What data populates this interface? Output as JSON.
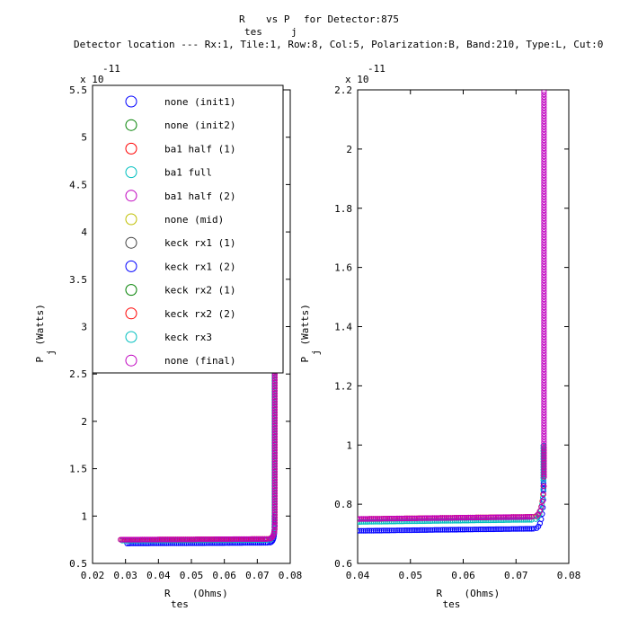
{
  "figure": {
    "title_line1_parts": [
      "R",
      "tes",
      "vs P",
      "j",
      "for Detector:875"
    ],
    "title_line2": "Detector location --- Rx:1, Tile:1, Row:8, Col:5, Polarization:B, Band:210, Type:L, Cut:0"
  },
  "chart_data": [
    {
      "type": "scatter",
      "name": "left-panel",
      "xlim": [
        0.02,
        0.08
      ],
      "ylim": [
        5e-12,
        5.5e-11
      ],
      "x_ticks": [
        "0.02",
        "0.03",
        "0.04",
        "0.05",
        "0.06",
        "0.07",
        "0.08"
      ],
      "y_ticks": [
        "0.5",
        "1",
        "1.5",
        "2",
        "2.5",
        "3",
        "3.5",
        "4",
        "4.5",
        "5",
        "5.5"
      ],
      "y_tick_values": [
        0.5,
        1,
        1.5,
        2,
        2.5,
        3,
        3.5,
        4,
        4.5,
        5,
        5.5
      ],
      "exponent_prefix": "x 10",
      "exponent": "-11",
      "xlabel_main": "R",
      "xlabel_sub": "tes",
      "xlabel_unit": "(Ohms)",
      "ylabel_main": "P",
      "ylabel_sub": "j",
      "ylabel_unit": "(Watts)",
      "legend_placement": "top-left",
      "legend": [
        {
          "label": "none (init1)",
          "color": "#0000ff"
        },
        {
          "label": "none (init2)",
          "color": "#008000"
        },
        {
          "label": "ba1 half (1)",
          "color": "#ff0000"
        },
        {
          "label": "ba1 full",
          "color": "#00bfbf"
        },
        {
          "label": "ba1 half (2)",
          "color": "#bf00bf"
        },
        {
          "label": "none (mid)",
          "color": "#bfbf00"
        },
        {
          "label": "keck rx1 (1)",
          "color": "#404040"
        },
        {
          "label": "keck rx1 (2)",
          "color": "#0000ff"
        },
        {
          "label": "keck rx2 (1)",
          "color": "#008000"
        },
        {
          "label": "keck rx2 (2)",
          "color": "#ff0000"
        },
        {
          "label": "keck rx3",
          "color": "#00bfbf"
        },
        {
          "label": "none (final)",
          "color": "#bf00bf"
        }
      ],
      "series": [
        {
          "color": "#bfbf00",
          "flat_y": 7.5e-12,
          "x_start": 0.0285,
          "x_knee": 0.073,
          "x_end": 0.0753,
          "y_top": 2.7e-11
        },
        {
          "color": "#0000ff",
          "flat_y": 7.1e-12,
          "x_start": 0.0305,
          "x_knee": 0.0735,
          "x_end": 0.0752,
          "y_top": 1e-11
        },
        {
          "color": "#00bfbf",
          "flat_y": 7.4e-12,
          "x_start": 0.029,
          "x_knee": 0.0732,
          "x_end": 0.0752,
          "y_top": 2.6e-11
        },
        {
          "color": "#ff0000",
          "flat_y": 7.5e-12,
          "x_start": 0.029,
          "x_knee": 0.0733,
          "x_end": 0.0753,
          "y_top": 2.6e-11
        },
        {
          "color": "#bf00bf",
          "flat_y": 7.5e-12,
          "x_start": 0.0285,
          "x_knee": 0.0732,
          "x_end": 0.0753,
          "y_top": 2.8e-11
        }
      ]
    },
    {
      "type": "scatter",
      "name": "right-panel",
      "xlim": [
        0.04,
        0.08
      ],
      "ylim": [
        6e-12,
        2.2e-11
      ],
      "x_ticks": [
        "0.04",
        "0.05",
        "0.06",
        "0.07",
        "0.08"
      ],
      "y_ticks": [
        "0.6",
        "0.8",
        "1",
        "1.2",
        "1.4",
        "1.6",
        "1.8",
        "2",
        "2.2"
      ],
      "y_tick_values": [
        0.6,
        0.8,
        1,
        1.2,
        1.4,
        1.6,
        1.8,
        2,
        2.2
      ],
      "exponent_prefix": "x 10",
      "exponent": "-11",
      "xlabel_main": "R",
      "xlabel_sub": "tes",
      "xlabel_unit": "(Ohms)",
      "ylabel_main": "P",
      "ylabel_sub": "j",
      "ylabel_unit": "(Watts)",
      "series": [
        {
          "color": "#bfbf00",
          "flat_y": 7.5e-12,
          "x_start": 0.04,
          "x_knee": 0.0735,
          "x_end": 0.0752,
          "y_top": 1e-11
        },
        {
          "color": "#0000ff",
          "flat_y": 7.1e-12,
          "x_start": 0.04,
          "x_knee": 0.0735,
          "x_end": 0.0752,
          "y_top": 1e-11
        },
        {
          "color": "#00bfbf",
          "flat_y": 7.4e-12,
          "x_start": 0.04,
          "x_knee": 0.0733,
          "x_end": 0.0752,
          "y_top": 1e-11
        },
        {
          "color": "#ff0000",
          "flat_y": 7.5e-12,
          "x_start": 0.04,
          "x_knee": 0.0733,
          "x_end": 0.0753,
          "y_top": 1e-11
        },
        {
          "color": "#bf00bf",
          "flat_y": 7.5e-12,
          "x_start": 0.04,
          "x_knee": 0.0733,
          "x_end": 0.0753,
          "y_top": 2.2e-11
        }
      ]
    }
  ]
}
